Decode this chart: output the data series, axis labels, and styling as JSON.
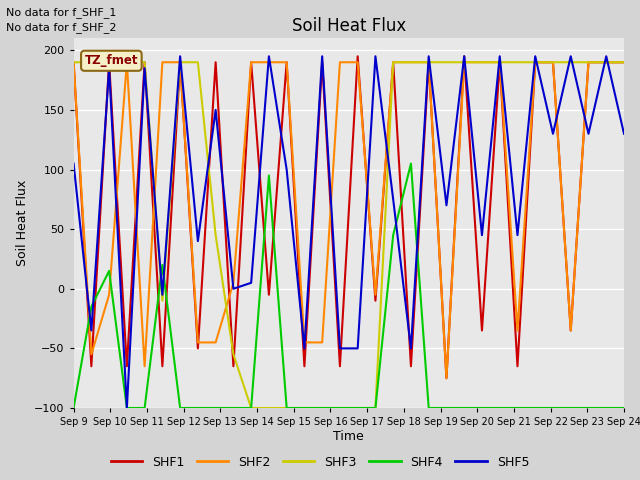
{
  "title": "Soil Heat Flux",
  "ylabel": "Soil Heat Flux",
  "xlabel": "Time",
  "annotations": [
    "No data for f_SHF_1",
    "No data for f_SHF_2"
  ],
  "tz_label": "TZ_fmet",
  "ylim": [
    -100,
    210
  ],
  "yticks": [
    -100,
    -50,
    0,
    50,
    100,
    150,
    200
  ],
  "x_labels": [
    "Sep 9",
    "Sep 10",
    "Sep 11",
    "Sep 12",
    "Sep 13",
    "Sep 14",
    "Sep 15",
    "Sep 16",
    "Sep 17",
    "Sep 18",
    "Sep 19",
    "Sep 20",
    "Sep 21",
    "Sep 22",
    "Sep 23",
    "Sep 24"
  ],
  "colors": {
    "SHF1": "#cc0000",
    "SHF2": "#ff8800",
    "SHF3": "#cccc00",
    "SHF4": "#00cc00",
    "SHF5": "#0000cc"
  },
  "background_color": "#d4d4d4",
  "plot_bg": "#e8e8e8",
  "SHF1": [
    190,
    -65,
    190,
    -65,
    190,
    -65,
    190,
    -50,
    190,
    -65,
    190,
    -5,
    190,
    -65,
    190,
    -65,
    195,
    -10,
    190,
    -65,
    190,
    -75,
    195,
    -35,
    190,
    -65,
    190,
    190,
    -35,
    190,
    190,
    190
  ],
  "SHF2": [
    190,
    -55,
    -5,
    190,
    -65,
    190,
    190,
    -45,
    -45,
    5,
    190,
    190,
    190,
    -45,
    -45,
    190,
    190,
    -5,
    190,
    190,
    190,
    -75,
    190,
    190,
    190,
    -35,
    190,
    190,
    -35,
    190,
    190,
    190
  ],
  "SHF3": [
    190,
    190,
    190,
    190,
    190,
    -10,
    190,
    190,
    45,
    -55,
    -100,
    -100,
    -100,
    -100,
    -100,
    -100,
    -100,
    -100,
    190,
    190,
    190,
    190,
    190,
    190,
    190,
    190,
    190,
    190,
    190,
    190,
    190,
    190
  ],
  "SHF4": [
    -100,
    -15,
    15,
    -100,
    -100,
    20,
    -100,
    -100,
    -100,
    -100,
    -100,
    95,
    -100,
    -100,
    -100,
    -100,
    -100,
    -100,
    45,
    105,
    -100,
    -100,
    -100,
    -100,
    -100,
    -100,
    -100,
    -100,
    -100,
    -100,
    -100,
    -100
  ],
  "SHF5": [
    105,
    -35,
    185,
    -100,
    185,
    -5,
    195,
    40,
    150,
    0,
    5,
    195,
    100,
    -50,
    195,
    -50,
    -50,
    195,
    75,
    -50,
    195,
    70,
    195,
    45,
    195,
    45,
    195,
    130,
    195,
    130,
    195,
    130
  ]
}
